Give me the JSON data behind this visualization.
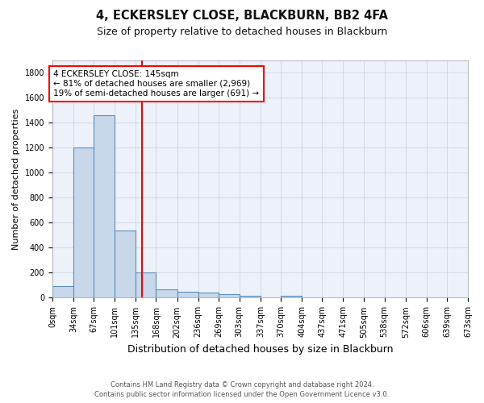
{
  "title1": "4, ECKERSLEY CLOSE, BLACKBURN, BB2 4FA",
  "title2": "Size of property relative to detached houses in Blackburn",
  "xlabel": "Distribution of detached houses by size in Blackburn",
  "ylabel": "Number of detached properties",
  "bin_labels": [
    "0sqm",
    "34sqm",
    "67sqm",
    "101sqm",
    "135sqm",
    "168sqm",
    "202sqm",
    "236sqm",
    "269sqm",
    "303sqm",
    "337sqm",
    "370sqm",
    "404sqm",
    "437sqm",
    "471sqm",
    "505sqm",
    "538sqm",
    "572sqm",
    "606sqm",
    "639sqm",
    "673sqm"
  ],
  "bar_values": [
    90,
    1200,
    1460,
    540,
    205,
    65,
    50,
    42,
    28,
    18,
    5,
    15,
    0,
    0,
    0,
    0,
    0,
    0,
    0,
    0
  ],
  "bin_edges": [
    0,
    34,
    67,
    101,
    135,
    168,
    202,
    236,
    269,
    303,
    337,
    370,
    404,
    437,
    471,
    505,
    538,
    572,
    606,
    639,
    673
  ],
  "bar_color": "#c8d8ea",
  "bar_edge_color": "#5b8db8",
  "red_line_x": 145,
  "annotation_title": "4 ECKERSLEY CLOSE: 145sqm",
  "annotation_line1": "← 81% of detached houses are smaller (2,969)",
  "annotation_line2": "19% of semi-detached houses are larger (691) →",
  "annotation_box_color": "white",
  "annotation_box_edge": "red",
  "ylim": [
    0,
    1900
  ],
  "yticks": [
    0,
    200,
    400,
    600,
    800,
    1000,
    1200,
    1400,
    1600,
    1800
  ],
  "fig_background": "#ffffff",
  "plot_background": "#edf2fa",
  "grid_color": "#c8cdd8",
  "footer1": "Contains HM Land Registry data © Crown copyright and database right 2024.",
  "footer2": "Contains public sector information licensed under the Open Government Licence v3.0.",
  "title1_fontsize": 10.5,
  "title2_fontsize": 9,
  "ylabel_fontsize": 8,
  "xlabel_fontsize": 9,
  "tick_fontsize": 7,
  "footer_fontsize": 6
}
